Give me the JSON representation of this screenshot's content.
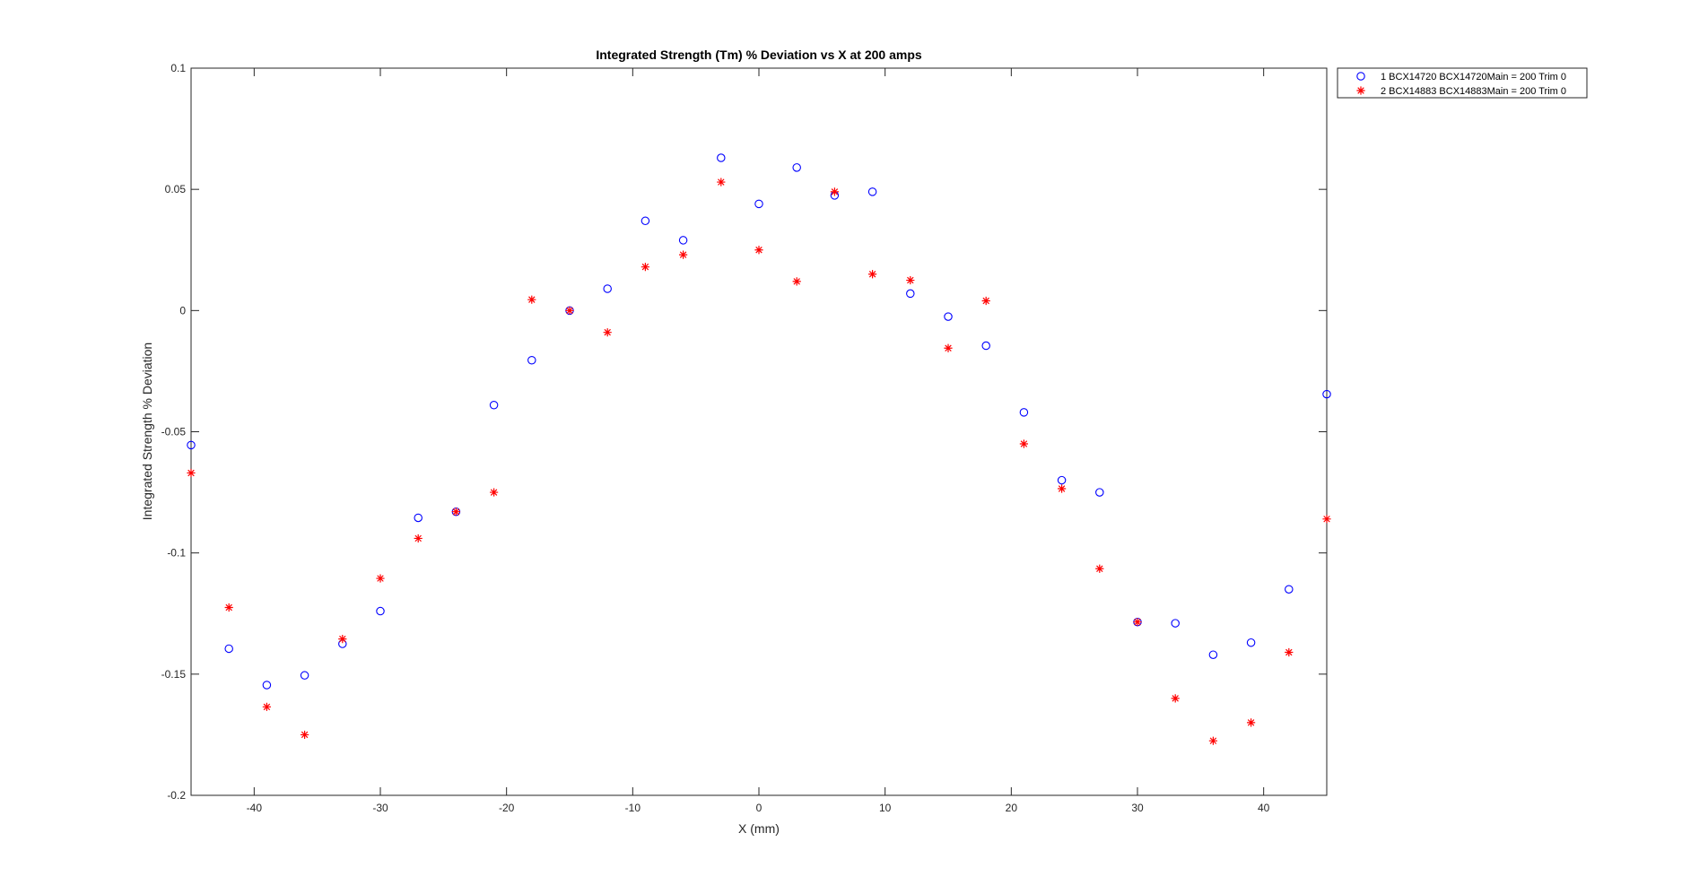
{
  "chart_data": {
    "type": "scatter",
    "title": "Integrated Strength (Tm) % Deviation vs X at 200 amps",
    "xlabel": "X (mm)",
    "ylabel": "Integrated Strength % Deviation",
    "xlim": [
      -45,
      45
    ],
    "ylim": [
      -0.2,
      0.1
    ],
    "xticks": [
      -40,
      -30,
      -20,
      -10,
      0,
      10,
      20,
      30,
      40
    ],
    "xtick_labels": [
      "-40",
      "-30",
      "-20",
      "-10",
      "0",
      "10",
      "20",
      "30",
      "40"
    ],
    "yticks": [
      -0.2,
      -0.15,
      -0.1,
      -0.05,
      0,
      0.05,
      0.1
    ],
    "ytick_labels": [
      "-0.2",
      "-0.15",
      "-0.1",
      "-0.05",
      "0",
      "0.05",
      "0.1"
    ],
    "grid": false,
    "legend_position": "outside-top-right",
    "x": [
      -45,
      -42,
      -39,
      -36,
      -33,
      -30,
      -27,
      -24,
      -21,
      -18,
      -15,
      -12,
      -9,
      -6,
      -3,
      0,
      3,
      6,
      9,
      12,
      15,
      18,
      21,
      24,
      27,
      30,
      33,
      36,
      39,
      42,
      45
    ],
    "series": [
      {
        "name": "1 BCX14720 BCX14720Main = 200 Trim 0",
        "marker": "circle",
        "color": "#0000ff",
        "values": [
          -0.0555,
          -0.1395,
          -0.1545,
          -0.1505,
          -0.1375,
          -0.124,
          -0.0855,
          -0.083,
          -0.039,
          -0.0205,
          0.0,
          0.009,
          0.037,
          0.029,
          0.063,
          0.044,
          0.059,
          0.0475,
          0.049,
          0.007,
          -0.0025,
          -0.0145,
          -0.042,
          -0.07,
          -0.075,
          -0.1285,
          -0.129,
          -0.142,
          -0.137,
          -0.115,
          -0.0345
        ]
      },
      {
        "name": "2 BCX14883 BCX14883Main = 200 Trim 0",
        "marker": "asterisk",
        "color": "#ff0000",
        "values": [
          -0.067,
          -0.1225,
          -0.1635,
          -0.175,
          -0.1355,
          -0.1105,
          -0.094,
          -0.083,
          -0.075,
          0.0045,
          0.0,
          -0.009,
          0.018,
          0.023,
          0.053,
          0.025,
          0.012,
          0.049,
          0.015,
          0.0125,
          -0.0155,
          0.004,
          -0.055,
          -0.0735,
          -0.1065,
          -0.1285,
          -0.16,
          -0.1775,
          -0.17,
          -0.141,
          -0.086
        ]
      }
    ]
  }
}
